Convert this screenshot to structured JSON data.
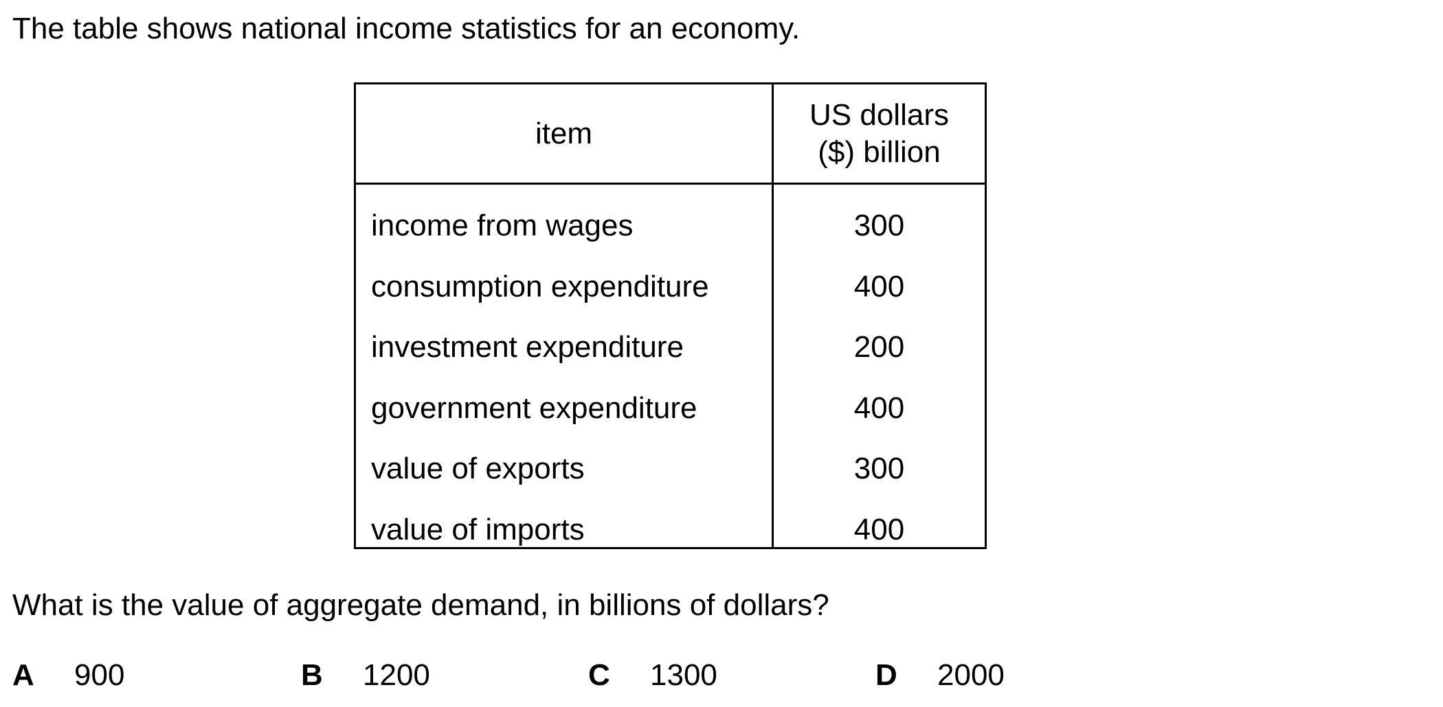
{
  "intro_text": "The table shows national income statistics for an economy.",
  "table": {
    "header_item": "item",
    "header_value_line1": "US dollars",
    "header_value_line2": "($) billion",
    "rows": [
      {
        "item": "income from wages",
        "value": "300"
      },
      {
        "item": "consumption expenditure",
        "value": "400"
      },
      {
        "item": "investment expenditure",
        "value": "200"
      },
      {
        "item": "government expenditure",
        "value": "400"
      },
      {
        "item": "value of exports",
        "value": "300"
      },
      {
        "item": "value of imports",
        "value": "400"
      }
    ]
  },
  "question": "What is the value of aggregate demand, in billions of dollars?",
  "options": [
    {
      "letter": "A",
      "value": "900"
    },
    {
      "letter": "B",
      "value": "1200"
    },
    {
      "letter": "C",
      "value": "1300"
    },
    {
      "letter": "D",
      "value": "2000"
    }
  ]
}
